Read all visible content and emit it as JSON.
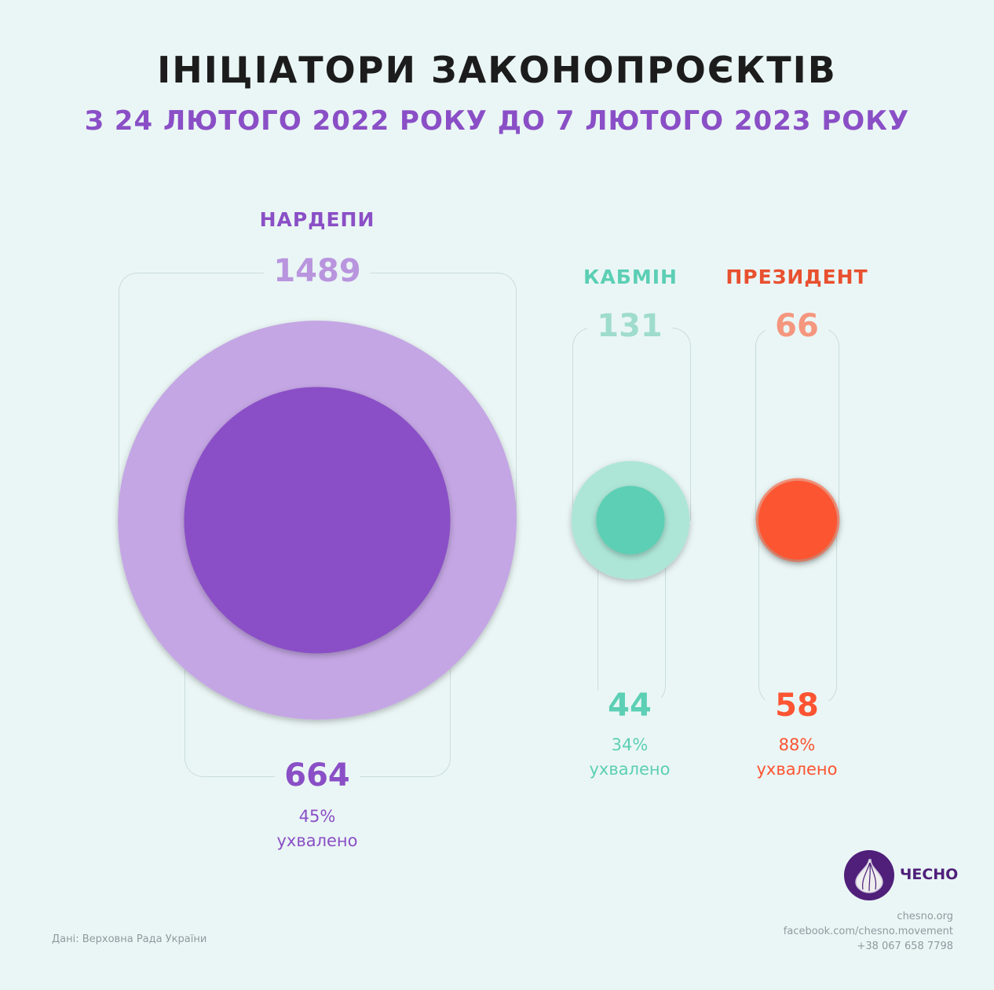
{
  "title": "ІНІЦІАТОРИ ЗАКОНОПРОЄКТІВ",
  "subtitle": "З 24 ЛЮТОГО 2022 РОКУ ДО 7 ЛЮТОГО 2023 РОКУ",
  "chart_data": {
    "type": "bubble",
    "title": "ІНІЦІАТОРИ ЗАКОНОПРОЄКТІВ",
    "subtitle": "З 24 ЛЮТОГО 2022 РОКУ ДО 7 ЛЮТОГО 2023 РОКУ",
    "categories": [
      "НАРДЕПИ",
      "КАБМІН",
      "ПРЕЗИДЕНТ"
    ],
    "series": [
      {
        "name": "submitted",
        "values": [
          1489,
          131,
          66
        ]
      },
      {
        "name": "approved",
        "values": [
          664,
          44,
          58
        ]
      }
    ],
    "groups": [
      {
        "label": "НАРДЕПИ",
        "total": "1489",
        "approved": "664",
        "percent": "45%",
        "approved_label": "ухвалено",
        "outer_color": "#c4a6e4",
        "inner_color": "#8a4fc6",
        "label_color": "#8a4fc6",
        "total_color": "#b995de"
      },
      {
        "label": "КАБМІН",
        "total": "131",
        "approved": "44",
        "percent": "34%",
        "approved_label": "ухвалено",
        "outer_color": "#ade6d7",
        "inner_color": "#5ccfb4",
        "label_color": "#5ccfb4",
        "total_color": "#9fdccd"
      },
      {
        "label": "ПРЕЗИДЕНТ",
        "total": "66",
        "approved": "58",
        "percent": "88%",
        "approved_label": "ухвалено",
        "outer_color": "#f7937a",
        "inner_color": "#fc5432",
        "label_color": "#e8502f",
        "total_color": "#f5967e"
      }
    ]
  },
  "footer": {
    "source": "Дані: Верховна Рада України",
    "brand": "ЧЕСНО",
    "website": "chesno.org",
    "facebook": "facebook.com/chesno.movement",
    "phone": "+38 067 658 7798",
    "brand_color": "#4f1f7a"
  }
}
